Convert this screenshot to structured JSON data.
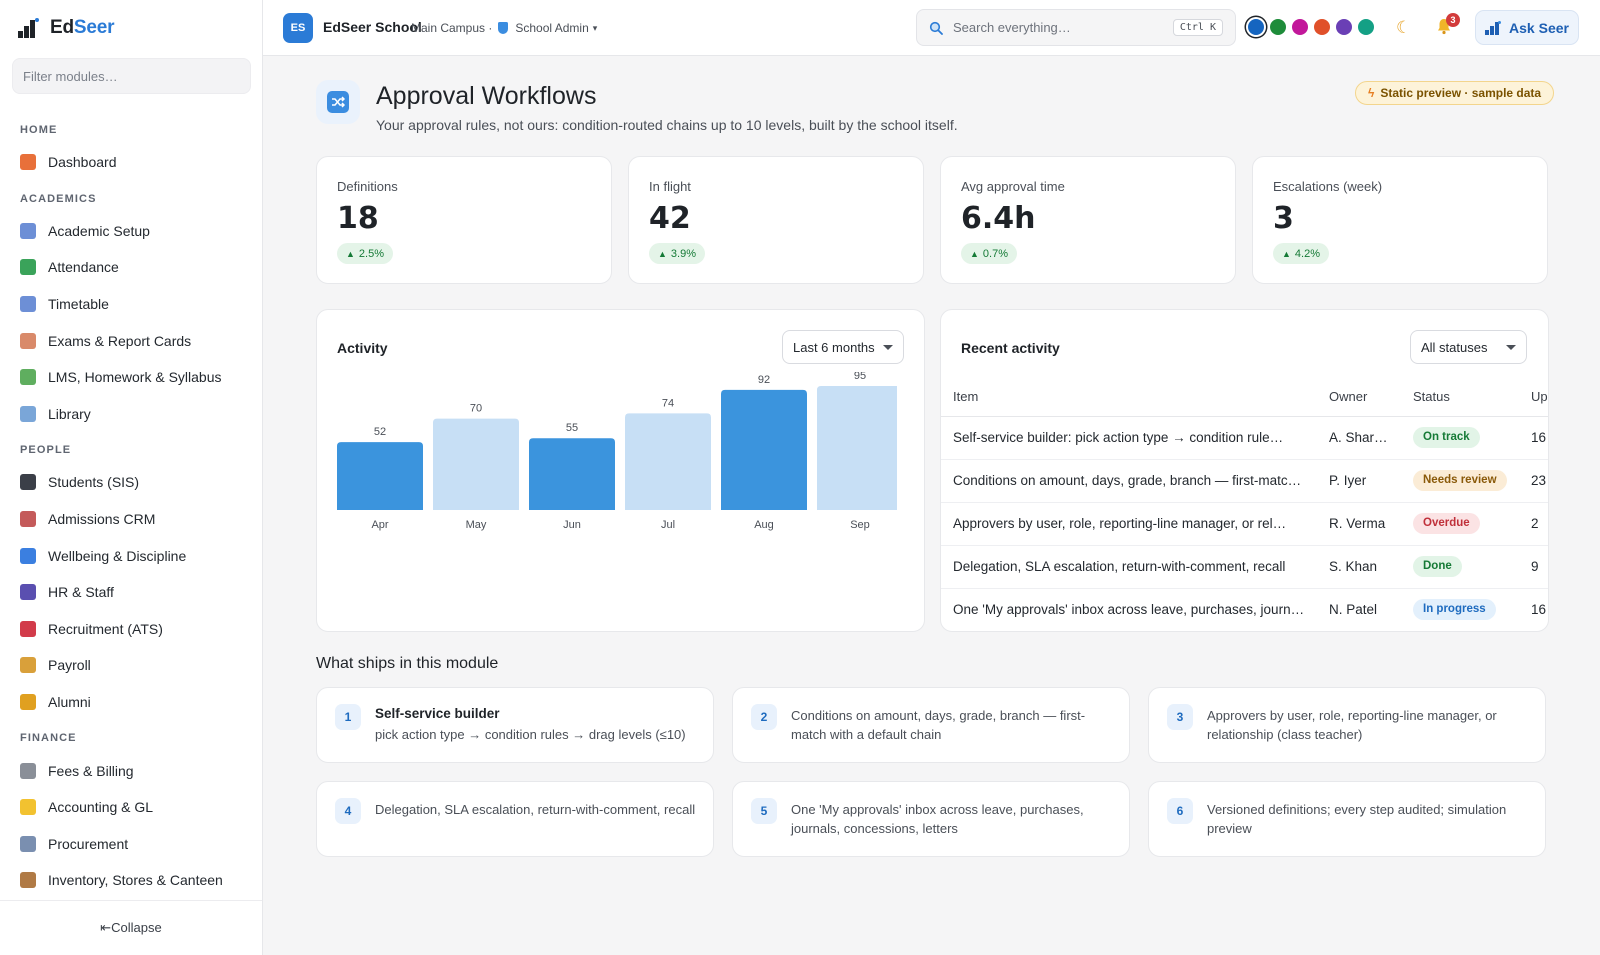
{
  "brand": {
    "part1": "Ed",
    "part2": "Seer"
  },
  "sidebar": {
    "filter_placeholder": "Filter modules…",
    "collapse_label": "⇤Collapse",
    "sections": [
      {
        "title": "HOME",
        "items": [
          {
            "label": "Dashboard",
            "icon": "house-icon",
            "color": "#e8703a"
          }
        ]
      },
      {
        "title": "ACADEMICS",
        "items": [
          {
            "label": "Academic Setup",
            "icon": "calendar-icon",
            "color": "#6d8fd6"
          },
          {
            "label": "Attendance",
            "icon": "checkbox-icon",
            "color": "#3aa35a"
          },
          {
            "label": "Timetable",
            "icon": "calendar-grid-icon",
            "color": "#6d8fd6"
          },
          {
            "label": "Exams & Report Cards",
            "icon": "memo-icon",
            "color": "#d98a6a"
          },
          {
            "label": "LMS, Homework & Syllabus",
            "icon": "books-icon",
            "color": "#5fae5f"
          },
          {
            "label": "Library",
            "icon": "open-book-icon",
            "color": "#7aa6d8"
          }
        ]
      },
      {
        "title": "PEOPLE",
        "items": [
          {
            "label": "Students (SIS)",
            "icon": "graduation-cap-icon",
            "color": "#3b3f48"
          },
          {
            "label": "Admissions CRM",
            "icon": "clipboard-icon",
            "color": "#c45a5a"
          },
          {
            "label": "Wellbeing & Discipline",
            "icon": "heart-icon",
            "color": "#3b7fe0"
          },
          {
            "label": "HR & Staff",
            "icon": "people-icon",
            "color": "#5a4fb0"
          },
          {
            "label": "Recruitment (ATS)",
            "icon": "magnet-icon",
            "color": "#d23b4a"
          },
          {
            "label": "Payroll",
            "icon": "money-bag-icon",
            "color": "#d9a03a"
          },
          {
            "label": "Alumni",
            "icon": "medal-icon",
            "color": "#e0a020"
          }
        ]
      },
      {
        "title": "FINANCE",
        "items": [
          {
            "label": "Fees & Billing",
            "icon": "receipt-icon",
            "color": "#8a8f98"
          },
          {
            "label": "Accounting & GL",
            "icon": "ledger-icon",
            "color": "#f2c230"
          },
          {
            "label": "Procurement",
            "icon": "cart-icon",
            "color": "#7a8fb0"
          },
          {
            "label": "Inventory, Stores & Canteen",
            "icon": "package-icon",
            "color": "#b07a45"
          }
        ]
      }
    ]
  },
  "topbar": {
    "school_initials": "ES",
    "school_name": "EdSeer School",
    "campus": "Main Campus ·",
    "role": "School Admin",
    "role_caret": "▾",
    "search_placeholder": "Search everything…",
    "search_shortcut": "Ctrl K",
    "theme_swatches": [
      "#1565c0",
      "#1e8c3a",
      "#c2189a",
      "#e0502a",
      "#6a3fb5",
      "#14a085"
    ],
    "notifications_count": "3",
    "ask_label": "Ask Seer"
  },
  "page": {
    "title": "Approval Workflows",
    "subtitle": "Your approval rules, not ours: condition-routed chains up to 10 levels, built by the school itself.",
    "preview_badge": "Static preview · sample data"
  },
  "kpis": [
    {
      "label": "Definitions",
      "value": "18",
      "delta": "2.5%"
    },
    {
      "label": "In flight",
      "value": "42",
      "delta": "3.9%"
    },
    {
      "label": "Avg approval time",
      "value": "6.4h",
      "delta": "0.7%"
    },
    {
      "label": "Escalations (week)",
      "value": "3",
      "delta": "4.2%"
    }
  ],
  "activity": {
    "title": "Activity",
    "range_label": "Last 6 months"
  },
  "chart_data": {
    "type": "bar",
    "categories": [
      "Apr",
      "May",
      "Jun",
      "Jul",
      "Aug",
      "Sep"
    ],
    "values": [
      52,
      70,
      55,
      74,
      92,
      95
    ],
    "bar_colors": [
      "#3b94dd",
      "#c7dff5",
      "#3b94dd",
      "#c7dff5",
      "#3b94dd",
      "#c7dff5"
    ],
    "ylim": [
      0,
      95
    ],
    "title": "Activity",
    "xlabel": "",
    "ylabel": ""
  },
  "recent": {
    "title": "Recent activity",
    "filter_label": "All statuses",
    "columns": [
      "Item",
      "Owner",
      "Status",
      "Up"
    ],
    "rows": [
      {
        "item": "Self-service builder: pick action type → condition rule…",
        "owner": "A. Sharma",
        "status": "On track",
        "status_class": "st-track",
        "updated": "16"
      },
      {
        "item": "Conditions on amount, days, grade, branch — first-match…",
        "owner": "P. Iyer",
        "status": "Needs review",
        "status_class": "st-review",
        "updated": "23"
      },
      {
        "item": "Approvers by user, role, reporting-line manager, or rel…",
        "owner": "R. Verma",
        "status": "Overdue",
        "status_class": "st-overdue",
        "updated": "2"
      },
      {
        "item": "Delegation, SLA escalation, return-with-comment, recall",
        "owner": "S. Khan",
        "status": "Done",
        "status_class": "st-done",
        "updated": "9"
      },
      {
        "item": "One 'My approvals' inbox across leave, purchases, journ…",
        "owner": "N. Patel",
        "status": "In progress",
        "status_class": "st-progress",
        "updated": "16"
      }
    ]
  },
  "features": {
    "title": "What ships in this module",
    "items": [
      {
        "num": "1",
        "title": "Self-service builder",
        "sub": "pick action type → condition rules → drag levels (≤10)"
      },
      {
        "num": "2",
        "text": "Conditions on amount, days, grade, branch — first-match with a default chain"
      },
      {
        "num": "3",
        "text": "Approvers by user, role, reporting-line manager, or relationship (class teacher)"
      },
      {
        "num": "4",
        "text": "Delegation, SLA escalation, return-with-comment, recall"
      },
      {
        "num": "5",
        "text": "One 'My approvals' inbox across leave, purchases, journals, concessions, letters"
      },
      {
        "num": "6",
        "text": "Versioned definitions; every step audited; simulation preview"
      }
    ]
  }
}
